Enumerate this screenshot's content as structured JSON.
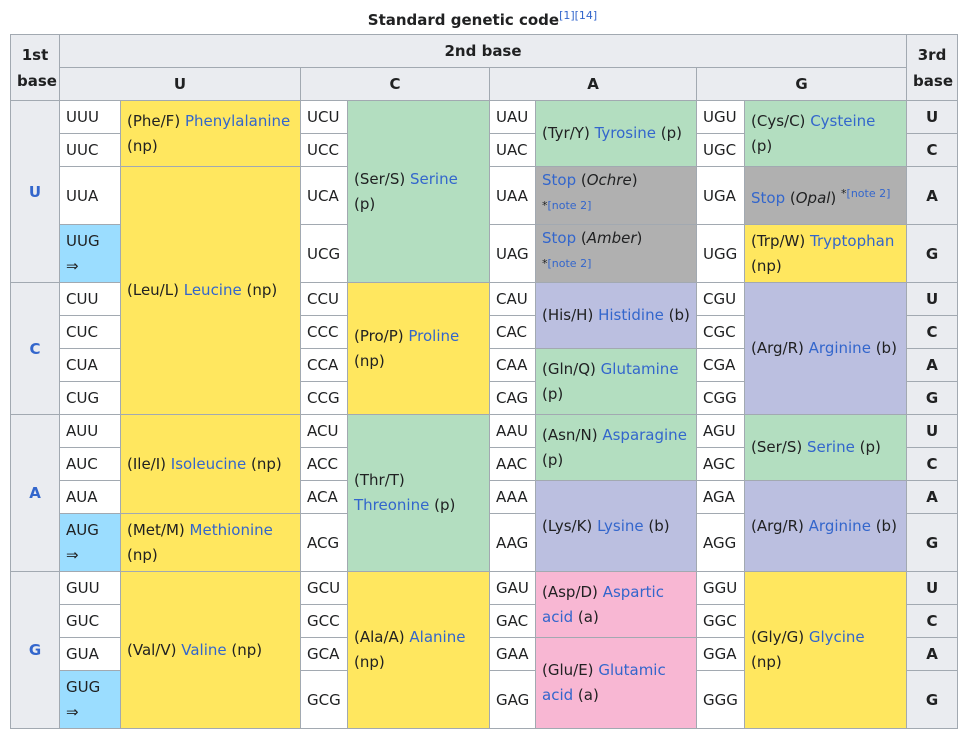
{
  "caption": {
    "title": "Standard genetic code",
    "refs": "[1][14]"
  },
  "headers": {
    "first_base": "1st base",
    "second_base": "2nd base",
    "third_base": "3rd base",
    "col_u": "U",
    "col_c": "C",
    "col_a": "A",
    "col_g": "G"
  },
  "bases": {
    "u": "U",
    "c": "C",
    "a": "A",
    "g": "G"
  },
  "arrow": "⇒",
  "codons": {
    "UUU": "UUU",
    "UUC": "UUC",
    "UUA": "UUA",
    "UUG": "UUG",
    "CUU": "CUU",
    "CUC": "CUC",
    "CUA": "CUA",
    "CUG": "CUG",
    "AUU": "AUU",
    "AUC": "AUC",
    "AUA": "AUA",
    "AUG": "AUG",
    "GUU": "GUU",
    "GUC": "GUC",
    "GUA": "GUA",
    "GUG": "GUG",
    "UCU": "UCU",
    "UCC": "UCC",
    "UCA": "UCA",
    "UCG": "UCG",
    "CCU": "CCU",
    "CCC": "CCC",
    "CCA": "CCA",
    "CCG": "CCG",
    "ACU": "ACU",
    "ACC": "ACC",
    "ACA": "ACA",
    "ACG": "ACG",
    "GCU": "GCU",
    "GCC": "GCC",
    "GCA": "GCA",
    "GCG": "GCG",
    "UAU": "UAU",
    "UAC": "UAC",
    "UAA": "UAA",
    "UAG": "UAG",
    "CAU": "CAU",
    "CAC": "CAC",
    "CAA": "CAA",
    "CAG": "CAG",
    "AAU": "AAU",
    "AAC": "AAC",
    "AAA": "AAA",
    "AAG": "AAG",
    "GAU": "GAU",
    "GAC": "GAC",
    "GAA": "GAA",
    "GAG": "GAG",
    "UGU": "UGU",
    "UGC": "UGC",
    "UGA": "UGA",
    "UGG": "UGG",
    "CGU": "CGU",
    "CGC": "CGC",
    "CGA": "CGA",
    "CGG": "CGG",
    "AGU": "AGU",
    "AGC": "AGC",
    "AGA": "AGA",
    "AGG": "AGG",
    "GGU": "GGU",
    "GGC": "GGC",
    "GGA": "GGA",
    "GGG": "GGG"
  },
  "amino": {
    "phe": {
      "abbr": "(Phe/F)",
      "name": "Phenylalanine",
      "prop": "(np)"
    },
    "leu": {
      "abbr": "(Leu/L)",
      "name": "Leucine",
      "prop": "(np)"
    },
    "ile": {
      "abbr": "(Ile/I)",
      "name": "Isoleucine",
      "prop": "(np)"
    },
    "met": {
      "abbr": "(Met/M)",
      "name": "Methionine",
      "prop": "(np)"
    },
    "val": {
      "abbr": "(Val/V)",
      "name": "Valine",
      "prop": "(np)"
    },
    "ser": {
      "abbr": "(Ser/S)",
      "name": "Serine",
      "prop": "(p)"
    },
    "pro": {
      "abbr": "(Pro/P)",
      "name": "Proline",
      "prop": "(np)"
    },
    "thr": {
      "abbr": "(Thr/T)",
      "name": "Threonine",
      "prop": "(p)"
    },
    "ala": {
      "abbr": "(Ala/A)",
      "name": "Alanine",
      "prop": "(np)"
    },
    "tyr": {
      "abbr": "(Tyr/Y)",
      "name": "Tyrosine",
      "prop": "(p)"
    },
    "his": {
      "abbr": "(His/H)",
      "name": "Histidine",
      "prop": "(b)"
    },
    "gln": {
      "abbr": "(Gln/Q)",
      "name": "Glutamine",
      "prop": "(p)"
    },
    "asn": {
      "abbr": "(Asn/N)",
      "name": "Asparagine",
      "prop": "(p)"
    },
    "lys": {
      "abbr": "(Lys/K)",
      "name": "Lysine",
      "prop": "(b)"
    },
    "asp": {
      "abbr": "(Asp/D)",
      "name": "Aspartic acid",
      "prop": "(a)"
    },
    "glu": {
      "abbr": "(Glu/E)",
      "name": "Glutamic acid",
      "prop": "(a)"
    },
    "cys": {
      "abbr": "(Cys/C)",
      "name": "Cysteine",
      "prop": "(p)"
    },
    "trp": {
      "abbr": "(Trp/W)",
      "name": "Tryptophan",
      "prop": "(np)"
    },
    "arg": {
      "abbr": "(Arg/R)",
      "name": "Arginine",
      "prop": "(b)"
    },
    "ser2": {
      "abbr": "(Ser/S)",
      "name": "Serine",
      "prop": "(p)"
    },
    "gly": {
      "abbr": "(Gly/G)",
      "name": "Glycine",
      "prop": "(np)"
    }
  },
  "stops": {
    "ochre": {
      "label": "Stop",
      "name": "Ochre",
      "note": "[note 2]",
      "star": "*"
    },
    "amber": {
      "label": "Stop",
      "name": "Amber",
      "note": "[note 2]",
      "star": "*"
    },
    "opal": {
      "label": "Stop",
      "name": "Opal",
      "note": "[note 2]",
      "star": "*"
    }
  },
  "colors": {
    "nonpolar": "#ffe75f",
    "polar": "#b3dec0",
    "basic": "#bbbfe0",
    "acidic": "#f8b7d3",
    "stop": "#b0b0b0",
    "start": "#9bddff",
    "link": "#3366cc"
  }
}
